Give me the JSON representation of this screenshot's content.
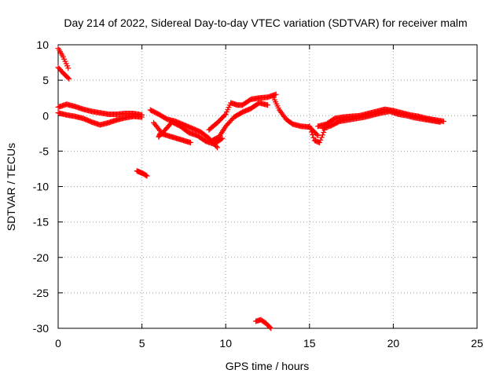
{
  "chart_data": {
    "type": "scatter",
    "title": "Day 214 of 2022, Sidereal Day-to-day VTEC variation (SDTVAR) for receiver malm",
    "xlabel": "GPS time / hours",
    "ylabel": "SDTVAR / TECUs",
    "xlim": [
      0,
      25
    ],
    "ylim": [
      -30,
      10
    ],
    "xticks": [
      0,
      5,
      10,
      15,
      20,
      25
    ],
    "yticks": [
      10,
      5,
      0,
      -5,
      -10,
      -15,
      -20,
      -25,
      -30
    ],
    "grid": true,
    "marker": "+",
    "series_color": "#ff0000",
    "segments": [
      {
        "name": "early high trace",
        "x": [
          0.0,
          0.3,
          0.6
        ],
        "y": [
          9.5,
          8.3,
          6.7
        ]
      },
      {
        "name": "early second trace",
        "x": [
          0.0,
          0.3,
          0.65
        ],
        "y": [
          6.8,
          6.0,
          5.2
        ]
      },
      {
        "name": "main band 0-5h upper",
        "x": [
          0.0,
          0.5,
          1.0,
          1.5,
          2.0,
          2.5,
          3.0,
          3.5,
          4.0,
          4.5,
          5.0
        ],
        "y": [
          1.2,
          1.6,
          1.3,
          0.9,
          0.6,
          0.4,
          0.2,
          0.2,
          0.3,
          0.3,
          0.1
        ]
      },
      {
        "name": "main band 0-5h lower",
        "x": [
          0.0,
          0.5,
          1.0,
          1.5,
          2.0,
          2.5,
          3.0,
          3.5,
          4.0,
          4.5,
          5.0
        ],
        "y": [
          0.4,
          0.1,
          -0.1,
          -0.4,
          -0.9,
          -1.3,
          -1.0,
          -0.6,
          -0.3,
          -0.1,
          -0.2
        ]
      },
      {
        "name": "isolated trace near 5h",
        "x": [
          4.7,
          4.9,
          5.1,
          5.3
        ],
        "y": [
          -7.8,
          -8.0,
          -8.2,
          -8.5
        ]
      },
      {
        "name": "trace 5.5-10h",
        "x": [
          5.5,
          6.0,
          6.5,
          7.0,
          7.5,
          8.0,
          8.5,
          9.0,
          9.5
        ],
        "y": [
          0.8,
          0.2,
          -0.5,
          -0.8,
          -1.3,
          -1.8,
          -2.3,
          -3.2,
          -4.5
        ]
      },
      {
        "name": "trace 5.5-10h lower",
        "x": [
          5.7,
          6.2,
          6.8,
          7.3,
          7.8,
          8.3,
          8.8,
          9.3,
          9.8
        ],
        "y": [
          -1.0,
          -2.5,
          -0.9,
          -1.5,
          -2.4,
          -2.8,
          -3.6,
          -4.0,
          -3.2
        ]
      },
      {
        "name": "scattered points 6-8h",
        "x": [
          6.0,
          6.1,
          7.9
        ],
        "y": [
          -3.0,
          -2.5,
          -3.8
        ]
      },
      {
        "name": "rise 9-13h",
        "x": [
          9.0,
          9.5,
          10.0,
          10.3,
          10.7,
          11.0,
          11.5,
          12.0,
          12.5,
          13.0
        ],
        "y": [
          -2.0,
          -1.0,
          0.2,
          1.8,
          1.5,
          1.5,
          2.3,
          2.5,
          2.6,
          3.0
        ]
      },
      {
        "name": "rise 9-13h lower",
        "x": [
          9.2,
          9.6,
          10.0,
          10.5,
          11.0,
          11.5,
          12.0,
          12.5
        ],
        "y": [
          -3.5,
          -3.0,
          -1.5,
          -0.2,
          0.5,
          1.0,
          1.8,
          1.5
        ]
      },
      {
        "name": "late bottom trace",
        "x": [
          11.8,
          12.1,
          12.4,
          12.7
        ],
        "y": [
          -29.0,
          -28.8,
          -29.3,
          -30.0
        ]
      },
      {
        "name": "descent 13-15.5h",
        "x": [
          12.8,
          13.2,
          13.6,
          14.0,
          14.5,
          15.0,
          15.5
        ],
        "y": [
          2.8,
          0.8,
          -0.5,
          -1.2,
          -1.5,
          -1.6,
          -2.8
        ]
      },
      {
        "name": "dip near 15.5h",
        "x": [
          15.0,
          15.3,
          15.6,
          15.9
        ],
        "y": [
          -1.5,
          -3.5,
          -3.8,
          -2.0
        ]
      },
      {
        "name": "late band 15.5-23h",
        "x": [
          15.5,
          16.0,
          16.5,
          17.0,
          17.5,
          18.0,
          18.5,
          19.0,
          19.5,
          20.0,
          20.5,
          21.0,
          21.5,
          22.0,
          22.5,
          23.0
        ],
        "y": [
          -1.5,
          -1.2,
          -0.4,
          -0.2,
          -0.1,
          0.0,
          0.3,
          0.6,
          0.9,
          0.7,
          0.4,
          0.1,
          -0.1,
          -0.4,
          -0.6,
          -0.8
        ]
      },
      {
        "name": "late band 15.5-23h lower",
        "x": [
          15.8,
          16.3,
          16.8,
          17.3,
          17.8,
          18.3,
          18.8,
          19.3,
          19.8,
          20.3,
          20.8,
          21.3,
          21.8,
          22.3,
          22.8
        ],
        "y": [
          -1.8,
          -1.4,
          -0.8,
          -0.6,
          -0.4,
          -0.2,
          0.1,
          0.4,
          0.6,
          0.2,
          0.0,
          -0.3,
          -0.5,
          -0.7,
          -0.9
        ]
      }
    ]
  }
}
